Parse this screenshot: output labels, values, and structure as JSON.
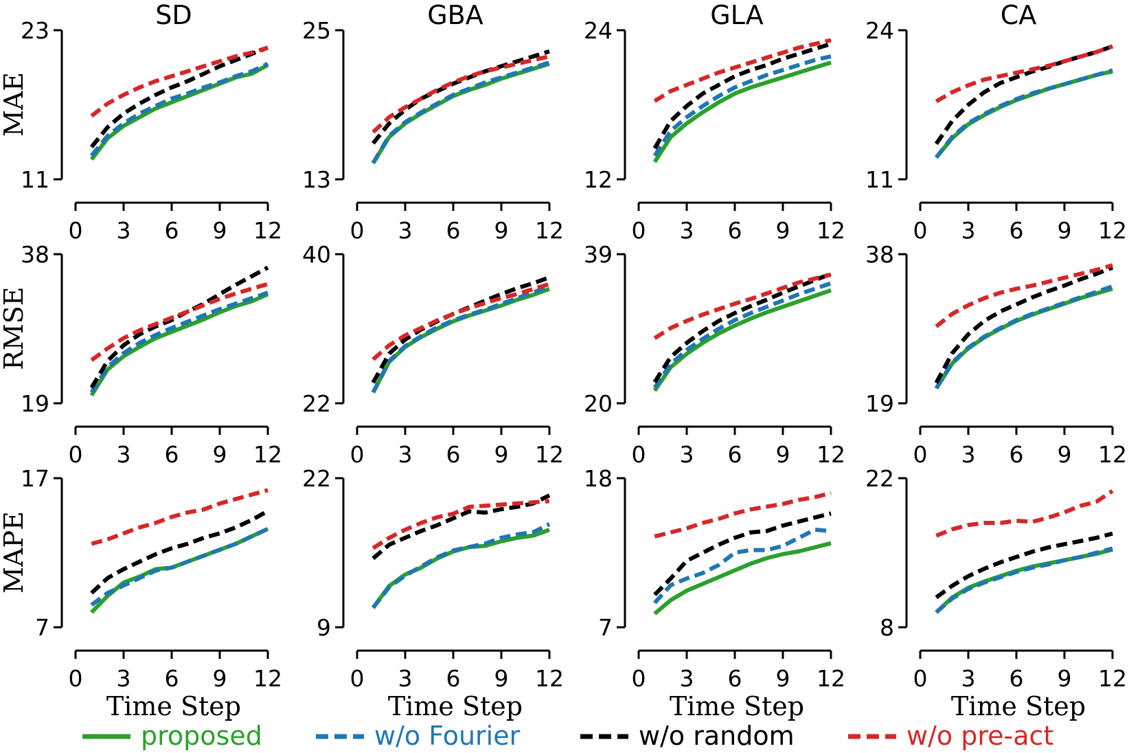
{
  "chart_data": {
    "type": "line",
    "columns": [
      "SD",
      "GBA",
      "GLA",
      "CA"
    ],
    "rows": [
      "MAE",
      "RMSE",
      "MAPE"
    ],
    "xlabel": "Time Step",
    "x": [
      1,
      2,
      3,
      4,
      5,
      6,
      7,
      8,
      9,
      10,
      11,
      12
    ],
    "xlim": [
      0,
      12
    ],
    "xticks": [
      0,
      3,
      6,
      9,
      12
    ],
    "series_meta": [
      {
        "key": "proposed",
        "name": "proposed",
        "color": "#2ca02c",
        "dashed": false
      },
      {
        "key": "fourier",
        "name": "w/o Fourier",
        "color": "#1f77b4",
        "dashed": true
      },
      {
        "key": "random",
        "name": "w/o random",
        "color": "#000000",
        "dashed": true
      },
      {
        "key": "preact",
        "name": "w/o pre-act",
        "color": "#d62728",
        "dashed": true
      }
    ],
    "panels": [
      {
        "column": "SD",
        "metric": "MAE",
        "ylim": [
          11,
          23
        ],
        "yticks": [
          "11",
          "23"
        ],
        "series": {
          "proposed": [
            12.6,
            14.3,
            15.3,
            16.0,
            16.7,
            17.2,
            17.7,
            18.2,
            18.7,
            19.2,
            19.5,
            20.2
          ],
          "fourier": [
            12.9,
            14.5,
            15.5,
            16.3,
            16.9,
            17.5,
            17.9,
            18.4,
            18.8,
            19.3,
            19.7,
            20.3
          ],
          "random": [
            13.6,
            15.2,
            16.3,
            17.1,
            17.8,
            18.4,
            18.9,
            19.5,
            20.1,
            20.6,
            21.1,
            21.6
          ],
          "preact": [
            16.1,
            17.1,
            17.8,
            18.4,
            18.9,
            19.3,
            19.7,
            20.1,
            20.5,
            20.9,
            21.2,
            21.6
          ]
        }
      },
      {
        "column": "GBA",
        "metric": "MAE",
        "ylim": [
          13,
          25
        ],
        "yticks": [
          "13",
          "25"
        ],
        "series": {
          "proposed": [
            14.3,
            16.4,
            17.5,
            18.3,
            19.0,
            19.7,
            20.2,
            20.6,
            21.1,
            21.5,
            21.9,
            22.3
          ],
          "fourier": [
            14.3,
            16.5,
            17.6,
            18.4,
            19.1,
            19.8,
            20.3,
            20.8,
            21.2,
            21.6,
            22.0,
            22.4
          ],
          "random": [
            15.9,
            17.5,
            18.6,
            19.5,
            20.1,
            20.7,
            21.2,
            21.7,
            22.1,
            22.5,
            22.9,
            23.3
          ],
          "preact": [
            16.8,
            18.0,
            18.8,
            19.5,
            20.2,
            20.8,
            21.3,
            21.7,
            22.0,
            22.3,
            22.6,
            22.9
          ]
        }
      },
      {
        "column": "GLA",
        "metric": "MAE",
        "ylim": [
          12,
          24
        ],
        "yticks": [
          "12",
          "24"
        ],
        "series": {
          "proposed": [
            13.4,
            15.4,
            16.5,
            17.4,
            18.2,
            18.9,
            19.4,
            19.8,
            20.2,
            20.6,
            21.0,
            21.4
          ],
          "fourier": [
            13.9,
            15.9,
            17.0,
            17.9,
            18.7,
            19.4,
            19.9,
            20.4,
            20.8,
            21.2,
            21.6,
            21.9
          ],
          "random": [
            14.5,
            16.7,
            17.9,
            18.9,
            19.6,
            20.3,
            20.8,
            21.2,
            21.7,
            22.1,
            22.5,
            22.9
          ],
          "preact": [
            18.3,
            19.1,
            19.6,
            20.1,
            20.6,
            21.0,
            21.4,
            21.8,
            22.2,
            22.6,
            22.9,
            23.2
          ]
        }
      },
      {
        "column": "CA",
        "metric": "MAE",
        "ylim": [
          11,
          24
        ],
        "yticks": [
          "11",
          "24"
        ],
        "series": {
          "proposed": [
            12.9,
            14.6,
            15.8,
            16.6,
            17.3,
            17.9,
            18.4,
            18.9,
            19.3,
            19.7,
            20.1,
            20.4
          ],
          "fourier": [
            12.9,
            14.7,
            15.9,
            16.7,
            17.4,
            18.0,
            18.5,
            18.9,
            19.3,
            19.7,
            20.1,
            20.5
          ],
          "random": [
            14.1,
            16.1,
            17.5,
            18.6,
            19.4,
            19.9,
            20.4,
            20.8,
            21.3,
            21.7,
            22.1,
            22.6
          ],
          "preact": [
            17.8,
            18.6,
            19.2,
            19.7,
            20.0,
            20.3,
            20.6,
            20.9,
            21.3,
            21.7,
            22.1,
            22.6
          ]
        }
      },
      {
        "column": "SD",
        "metric": "RMSE",
        "ylim": [
          19,
          38
        ],
        "yticks": [
          "19",
          "38"
        ],
        "series": {
          "proposed": [
            20.0,
            23.3,
            25.0,
            26.2,
            27.3,
            28.1,
            28.9,
            29.7,
            30.6,
            31.4,
            32.0,
            32.9
          ],
          "fourier": [
            20.4,
            23.6,
            25.4,
            26.7,
            27.7,
            28.6,
            29.4,
            30.2,
            31.0,
            31.7,
            32.4,
            33.1
          ],
          "random": [
            21.0,
            24.4,
            26.4,
            27.8,
            28.8,
            29.6,
            30.7,
            31.7,
            32.9,
            34.1,
            35.2,
            36.3
          ],
          "preact": [
            24.5,
            26.0,
            27.3,
            28.3,
            29.1,
            29.9,
            30.7,
            31.5,
            32.3,
            33.0,
            33.6,
            34.2
          ]
        }
      },
      {
        "column": "GBA",
        "metric": "RMSE",
        "ylim": [
          22,
          40
        ],
        "yticks": [
          "22",
          "40"
        ],
        "search_note": "",
        "series": {
          "proposed": [
            23.3,
            27.0,
            28.8,
            30.0,
            31.0,
            31.9,
            32.6,
            33.2,
            33.8,
            34.5,
            35.1,
            35.8
          ],
          "fourier": [
            23.3,
            27.1,
            28.9,
            30.1,
            31.2,
            32.0,
            32.7,
            33.3,
            34.0,
            34.7,
            35.4,
            36.1
          ],
          "random": [
            24.5,
            28.0,
            29.7,
            30.9,
            31.9,
            32.8,
            33.6,
            34.4,
            35.2,
            35.9,
            36.5,
            37.2
          ],
          "preact": [
            27.3,
            29.0,
            30.2,
            31.1,
            32.0,
            32.8,
            33.5,
            34.1,
            34.7,
            35.2,
            35.8,
            36.4
          ]
        }
      },
      {
        "column": "GLA",
        "metric": "RMSE",
        "ylim": [
          20,
          39
        ],
        "yticks": [
          "20",
          "39"
        ],
        "series": {
          "proposed": [
            21.6,
            24.6,
            26.3,
            27.7,
            28.9,
            29.9,
            30.8,
            31.6,
            32.3,
            33.0,
            33.7,
            34.4
          ],
          "fourier": [
            22.0,
            25.0,
            26.8,
            28.2,
            29.5,
            30.6,
            31.5,
            32.3,
            33.1,
            33.9,
            34.6,
            35.3
          ],
          "random": [
            22.7,
            25.9,
            27.7,
            29.2,
            30.5,
            31.5,
            32.4,
            33.2,
            34.1,
            34.9,
            35.7,
            36.5
          ],
          "preact": [
            28.3,
            29.6,
            30.5,
            31.3,
            32.0,
            32.7,
            33.3,
            34.0,
            34.7,
            35.4,
            35.9,
            36.4
          ]
        }
      },
      {
        "column": "CA",
        "metric": "RMSE",
        "ylim": [
          19,
          38
        ],
        "yticks": [
          "19",
          "38"
        ],
        "series": {
          "proposed": [
            20.9,
            24.1,
            26.0,
            27.4,
            28.5,
            29.5,
            30.3,
            31.0,
            31.7,
            32.4,
            33.0,
            33.6
          ],
          "fourier": [
            20.9,
            24.2,
            26.1,
            27.5,
            28.6,
            29.6,
            30.4,
            31.1,
            31.8,
            32.5,
            33.2,
            33.9
          ],
          "random": [
            21.6,
            25.4,
            27.8,
            29.5,
            30.7,
            31.6,
            32.5,
            33.3,
            34.0,
            34.8,
            35.5,
            36.3
          ],
          "preact": [
            28.8,
            30.4,
            31.5,
            32.4,
            33.1,
            33.6,
            34.0,
            34.5,
            35.0,
            35.5,
            36.0,
            36.6
          ]
        }
      },
      {
        "column": "SD",
        "metric": "MAPE",
        "ylim": [
          7,
          17
        ],
        "yticks": [
          "7",
          "17"
        ],
        "series": {
          "proposed": [
            8.0,
            9.1,
            10.0,
            10.4,
            10.9,
            11.0,
            11.4,
            11.8,
            12.2,
            12.6,
            13.1,
            13.6
          ],
          "fourier": [
            8.5,
            9.3,
            9.8,
            10.3,
            10.8,
            11.0,
            11.4,
            11.8,
            12.2,
            12.6,
            13.1,
            13.6
          ],
          "random": [
            9.3,
            10.3,
            10.9,
            11.4,
            11.9,
            12.3,
            12.6,
            13.0,
            13.3,
            13.7,
            14.2,
            14.8
          ],
          "preact": [
            12.6,
            12.9,
            13.3,
            13.7,
            14.0,
            14.4,
            14.7,
            14.9,
            15.3,
            15.6,
            15.9,
            16.2
          ]
        }
      },
      {
        "column": "GBA",
        "metric": "MAPE",
        "ylim": [
          9,
          22
        ],
        "yticks": [
          "9",
          "22"
        ],
        "series": {
          "proposed": [
            10.7,
            12.6,
            13.6,
            14.2,
            15.0,
            15.6,
            16.0,
            16.1,
            16.5,
            16.8,
            17.0,
            17.5
          ],
          "fourier": [
            10.7,
            12.5,
            13.5,
            14.3,
            15.1,
            15.7,
            16.0,
            16.3,
            16.8,
            17.1,
            17.3,
            18.0
          ],
          "random": [
            15.0,
            16.2,
            16.8,
            17.4,
            17.9,
            18.5,
            19.1,
            19.0,
            19.3,
            19.5,
            19.8,
            20.5
          ],
          "preact": [
            15.9,
            16.8,
            17.5,
            18.1,
            18.6,
            18.9,
            19.5,
            19.6,
            19.7,
            19.8,
            19.9,
            20.0
          ]
        }
      },
      {
        "column": "GLA",
        "metric": "MAPE",
        "ylim": [
          7,
          18
        ],
        "yticks": [
          "7",
          "18"
        ],
        "series": {
          "proposed": [
            8.0,
            9.0,
            9.7,
            10.2,
            10.7,
            11.2,
            11.7,
            12.1,
            12.4,
            12.6,
            12.9,
            13.2
          ],
          "fourier": [
            8.8,
            10.1,
            10.6,
            11.0,
            11.6,
            12.5,
            12.7,
            12.7,
            13.0,
            13.6,
            14.2,
            14.1
          ],
          "random": [
            9.4,
            10.6,
            11.9,
            12.5,
            13.1,
            13.6,
            14.0,
            14.1,
            14.5,
            14.8,
            15.1,
            15.4
          ],
          "preact": [
            13.7,
            14.0,
            14.3,
            14.7,
            15.0,
            15.4,
            15.7,
            15.9,
            16.1,
            16.4,
            16.6,
            16.9
          ]
        }
      },
      {
        "column": "CA",
        "metric": "MAPE",
        "ylim": [
          8,
          22
        ],
        "yticks": [
          "8",
          "22"
        ],
        "series": {
          "proposed": [
            9.4,
            10.8,
            11.7,
            12.3,
            12.8,
            13.3,
            13.7,
            14.0,
            14.3,
            14.6,
            14.9,
            15.3
          ],
          "fourier": [
            9.4,
            10.7,
            11.6,
            12.2,
            12.7,
            13.2,
            13.6,
            13.9,
            14.3,
            14.6,
            15.0,
            15.4
          ],
          "random": [
            10.8,
            11.9,
            12.8,
            13.5,
            14.1,
            14.6,
            15.1,
            15.5,
            15.8,
            16.1,
            16.4,
            16.8
          ],
          "preact": [
            16.6,
            17.2,
            17.6,
            17.8,
            17.8,
            18.0,
            17.9,
            18.3,
            18.8,
            19.4,
            19.8,
            20.8
          ]
        }
      }
    ]
  }
}
